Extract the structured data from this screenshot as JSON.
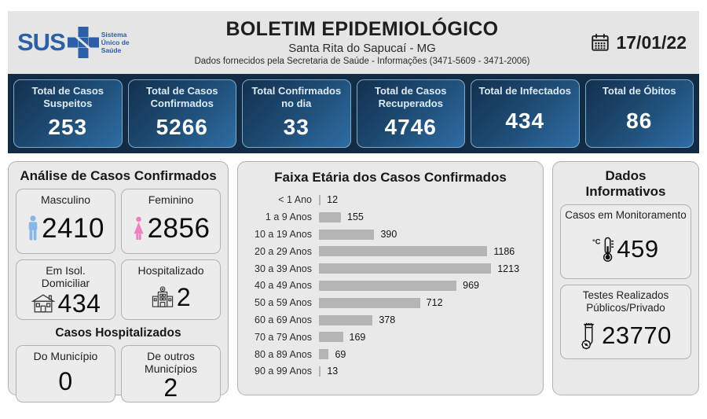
{
  "header": {
    "logo": {
      "text": "SUS",
      "subtext": "Sistema Único de Saúde"
    },
    "title": "BOLETIM EPIDEMIOLÓGICO",
    "subtitle": "Santa Rita do Sapucaí - MG",
    "info": "Dados fornecidos pela Secretaria de Saúde - Informações (3471-5609 - 3471-2006)",
    "date": "17/01/22"
  },
  "summary_cards": [
    {
      "label": "Total de Casos Suspeitos",
      "value": "253"
    },
    {
      "label": "Total de Casos Confirmados",
      "value": "5266"
    },
    {
      "label": "Total Confirmados no dia",
      "value": "33"
    },
    {
      "label": "Total de Casos Recuperados",
      "value": "4746"
    },
    {
      "label": "Total de Infectados",
      "value": "434"
    },
    {
      "label": "Total de Óbitos",
      "value": "86"
    }
  ],
  "analysis": {
    "title": "Análise de Casos Confirmados",
    "cards": [
      {
        "label": "Masculino",
        "value": "2410",
        "icon": "male-icon"
      },
      {
        "label": "Feminino",
        "value": "2856",
        "icon": "female-icon"
      },
      {
        "label": "Em Isol. Domiciliar",
        "value": "434",
        "icon": "house-icon"
      },
      {
        "label": "Hospitalizado",
        "value": "2",
        "icon": "hospital-icon"
      }
    ],
    "hospitalized": {
      "title": "Casos Hospitalizados",
      "cards": [
        {
          "label": "Do Município",
          "value": "0"
        },
        {
          "label": "De outros Municípios",
          "value": "2"
        }
      ]
    }
  },
  "chart_data": {
    "type": "bar",
    "orientation": "horizontal",
    "title": "Faixa Etária dos Casos Confirmados",
    "categories": [
      "< 1 Ano",
      "1 a 9 Anos",
      "10 a 19 Anos",
      "20 a 29 Anos",
      "30 a 39 Anos",
      "40 a 49 Anos",
      "50 a 59 Anos",
      "60 a 69 Anos",
      "70 a 79 Anos",
      "80 a 89 Anos",
      "90 a 99 Anos"
    ],
    "values": [
      12,
      155,
      390,
      1186,
      1213,
      969,
      712,
      378,
      169,
      69,
      13
    ],
    "xlim": [
      0,
      1213
    ],
    "data_labels": true,
    "grid": false,
    "legend": false,
    "bar_color": "#b5b5b5"
  },
  "info_panel": {
    "title": "Dados Informativos",
    "cards": [
      {
        "label": "Casos em Monitoramento",
        "value": "459",
        "icon": "thermometer-icon"
      },
      {
        "label": "Testes Realizados Públicos/Privado",
        "value": "23770",
        "icon": "test-tube-icon"
      }
    ]
  },
  "colors": {
    "sus_blue": "#2b5fa7",
    "navy": "#132c45",
    "grad_a": "#13304e",
    "grad_b": "#2f6da4",
    "male_icon": "#85b8e8",
    "female_icon": "#f07fc4",
    "bar": "#b5b5b5"
  }
}
